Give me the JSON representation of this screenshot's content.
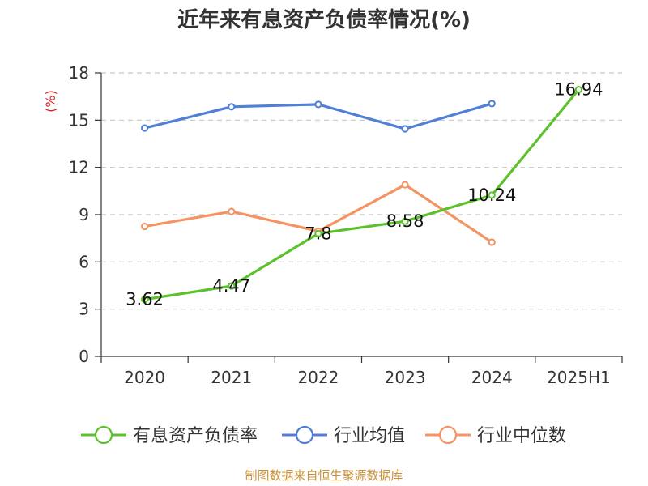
{
  "chart_data": {
    "type": "line",
    "title": "近年来有息资产负债率情况(%)",
    "y_unit": "(%)",
    "categories": [
      "2020",
      "2021",
      "2022",
      "2023",
      "2024",
      "2025H1"
    ],
    "ylim": [
      0,
      18
    ],
    "yticks": [
      0,
      3,
      6,
      9,
      12,
      15,
      18
    ],
    "grid": true,
    "legend_position": "bottom",
    "series": [
      {
        "name": "有息资产负债率",
        "color": "#5cc22c",
        "values": [
          3.62,
          4.47,
          7.8,
          8.58,
          10.24,
          16.94
        ],
        "data_labels": [
          "3.62",
          "4.47",
          "7.8",
          "8.58",
          "10.24",
          "16.94"
        ]
      },
      {
        "name": "行业均值",
        "color": "#4f7fd6",
        "values": [
          14.5,
          15.85,
          16.0,
          14.45,
          16.05,
          null
        ]
      },
      {
        "name": "行业中位数",
        "color": "#f59362",
        "values": [
          8.25,
          9.2,
          7.95,
          10.9,
          7.25,
          null
        ]
      }
    ]
  },
  "footer": {
    "source": "制图数据来自恒生聚源数据库"
  }
}
